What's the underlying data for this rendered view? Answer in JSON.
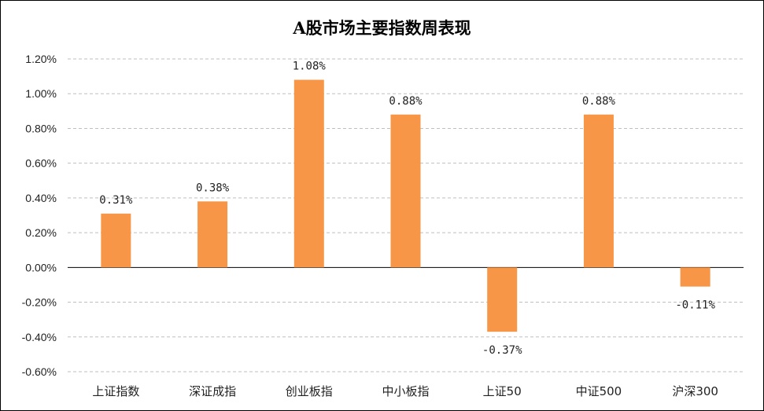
{
  "chart_data": {
    "type": "bar",
    "title": "A股市场主要指数周表现",
    "categories": [
      "上证指数",
      "深证成指",
      "创业板指",
      "中小板指",
      "上证50",
      "中证500",
      "沪深300"
    ],
    "series": [
      {
        "values": [
          0.31,
          0.38,
          1.08,
          0.88,
          -0.37,
          0.88,
          -0.11
        ],
        "data_labels": [
          "0.31%",
          "0.38%",
          "1.08%",
          "0.88%",
          "-0.37%",
          "0.88%",
          "-0.11%"
        ],
        "color": "#F79646"
      }
    ],
    "ylim": [
      -0.6,
      1.2
    ],
    "y_ticks": [
      1.2,
      1.0,
      0.8,
      0.6,
      0.4,
      0.2,
      0.0,
      -0.2,
      -0.4,
      -0.6
    ],
    "y_tick_labels": [
      "1.20%",
      "1.00%",
      "0.80%",
      "0.60%",
      "0.40%",
      "0.20%",
      "0.00%",
      "-0.20%",
      "-0.40%",
      "-0.60%"
    ],
    "xlabel": "",
    "ylabel": "",
    "grid": true,
    "gridline_style": "dashed",
    "legend": false
  }
}
